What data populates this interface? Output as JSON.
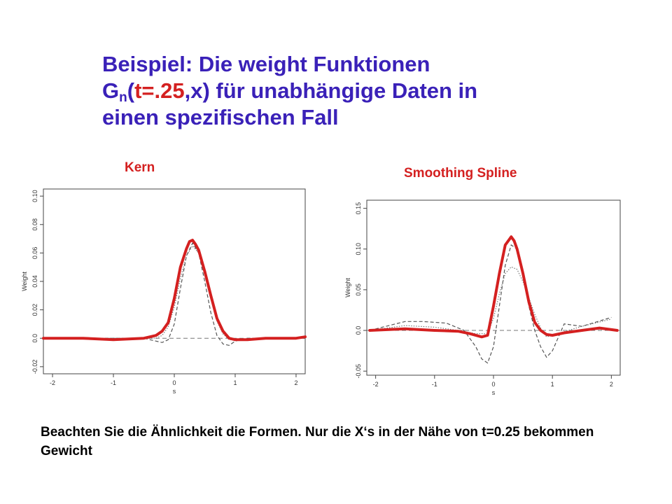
{
  "title": {
    "line1": "Beispiel: Die weight Funktionen",
    "g": "G",
    "sub": "n",
    "paren_open": "(",
    "arg1": "t=.25",
    "arg2": ",x) für unabhängige Daten in",
    "line3": "einen spezifischen Fall"
  },
  "note": "Beachten Sie die Ähnlichkeit die Formen.  Nur die X‘s in der Nähe von t=0.25 bekommen Gewicht",
  "colors": {
    "title": "#3a21b8",
    "accent": "#d42020",
    "thick_curve": "#d42020",
    "dashed_curve": "#555555",
    "dotted_curve": "#777777"
  },
  "chart_data": [
    {
      "type": "line",
      "title": "Kern",
      "xlabel": "s",
      "ylabel": "Weight",
      "xlim": [
        -2.15,
        2.15
      ],
      "ylim": [
        -0.025,
        0.105
      ],
      "xticks": [
        -2,
        -1,
        0,
        1,
        2
      ],
      "xtick_labels": [
        "-2",
        "-1",
        "0",
        "1",
        "2"
      ],
      "yticks": [
        -0.02,
        0,
        0.02,
        0.04,
        0.06,
        0.08,
        0.1
      ],
      "ytick_labels": [
        "-0.02",
        "0.0",
        "0.02",
        "0.04",
        "0.06",
        "0.08",
        "0.10"
      ],
      "reference_line": 0,
      "grid": false,
      "series": [
        {
          "style": "thick",
          "x": [
            -2.15,
            -1.5,
            -1.0,
            -0.5,
            -0.3,
            -0.2,
            -0.1,
            0.0,
            0.1,
            0.2,
            0.25,
            0.3,
            0.35,
            0.4,
            0.5,
            0.6,
            0.7,
            0.8,
            0.9,
            1.0,
            1.2,
            1.5,
            2.0,
            2.15
          ],
          "y": [
            0.0,
            0.0,
            -0.001,
            0.0,
            0.002,
            0.005,
            0.011,
            0.028,
            0.05,
            0.063,
            0.068,
            0.069,
            0.066,
            0.062,
            0.047,
            0.03,
            0.014,
            0.005,
            0.0,
            -0.001,
            -0.001,
            0.0,
            0.0,
            0.001
          ]
        },
        {
          "style": "dotted",
          "x": [
            -2.15,
            -1.0,
            -0.5,
            -0.3,
            -0.2,
            -0.1,
            0.0,
            0.1,
            0.2,
            0.3,
            0.4,
            0.5,
            0.6,
            0.7,
            0.8,
            0.9,
            1.0,
            1.5,
            2.15
          ],
          "y": [
            0.0,
            0.0,
            0.0,
            0.0,
            0.002,
            0.008,
            0.022,
            0.042,
            0.058,
            0.065,
            0.06,
            0.045,
            0.028,
            0.012,
            0.003,
            -0.001,
            -0.001,
            0.0,
            0.0
          ]
        },
        {
          "style": "dashed",
          "x": [
            -2.15,
            -0.5,
            -0.3,
            -0.2,
            -0.1,
            0.0,
            0.1,
            0.2,
            0.3,
            0.4,
            0.5,
            0.6,
            0.7,
            0.8,
            0.9,
            1.0,
            1.2,
            2.15
          ],
          "y": [
            0.0,
            0.0,
            -0.002,
            -0.003,
            -0.001,
            0.01,
            0.035,
            0.058,
            0.067,
            0.06,
            0.04,
            0.018,
            0.002,
            -0.004,
            -0.005,
            -0.002,
            0.0,
            0.0
          ]
        }
      ]
    },
    {
      "type": "line",
      "title": "Smoothing Spline",
      "xlabel": "s",
      "ylabel": "Weight",
      "xlim": [
        -2.15,
        2.15
      ],
      "ylim": [
        -0.055,
        0.16
      ],
      "xticks": [
        -2,
        -1,
        0,
        1,
        2
      ],
      "xtick_labels": [
        "-2",
        "-1",
        "0",
        "1",
        "2"
      ],
      "yticks": [
        -0.05,
        0,
        0.05,
        0.1,
        0.15
      ],
      "ytick_labels": [
        "-0.05",
        "0.0",
        "0.05",
        "0.10",
        "0.15"
      ],
      "reference_line": 0,
      "grid": false,
      "series": [
        {
          "style": "thick",
          "x": [
            -2.1,
            -1.5,
            -1.0,
            -0.6,
            -0.4,
            -0.2,
            -0.1,
            0.0,
            0.1,
            0.2,
            0.3,
            0.35,
            0.4,
            0.5,
            0.6,
            0.7,
            0.8,
            0.9,
            1.0,
            1.2,
            1.5,
            1.8,
            2.1
          ],
          "y": [
            0.0,
            0.002,
            0.0,
            -0.001,
            -0.004,
            -0.008,
            -0.006,
            0.03,
            0.07,
            0.105,
            0.115,
            0.11,
            0.1,
            0.07,
            0.035,
            0.01,
            0.0,
            -0.005,
            -0.006,
            -0.003,
            0.0,
            0.003,
            0.0
          ]
        },
        {
          "style": "dotted",
          "x": [
            -2.1,
            -1.5,
            -1.0,
            -0.6,
            -0.3,
            -0.1,
            0.0,
            0.1,
            0.2,
            0.3,
            0.4,
            0.5,
            0.6,
            0.7,
            0.8,
            0.9,
            1.0,
            1.5,
            2.0
          ],
          "y": [
            0.0,
            0.006,
            0.004,
            0.0,
            -0.004,
            -0.004,
            0.015,
            0.045,
            0.07,
            0.078,
            0.075,
            0.06,
            0.04,
            0.02,
            0.003,
            -0.008,
            -0.006,
            0.005,
            0.014
          ]
        },
        {
          "style": "dashed",
          "x": [
            -2.1,
            -1.5,
            -1.2,
            -0.8,
            -0.5,
            -0.3,
            -0.2,
            -0.1,
            0.0,
            0.1,
            0.2,
            0.3,
            0.4,
            0.5,
            0.6,
            0.7,
            0.8,
            0.9,
            1.0,
            1.2,
            1.5,
            2.0
          ],
          "y": [
            0.0,
            0.011,
            0.011,
            0.009,
            0.0,
            -0.02,
            -0.035,
            -0.04,
            -0.02,
            0.03,
            0.08,
            0.105,
            0.1,
            0.07,
            0.03,
            0.0,
            -0.02,
            -0.033,
            -0.025,
            0.008,
            0.005,
            0.016
          ]
        }
      ]
    }
  ]
}
